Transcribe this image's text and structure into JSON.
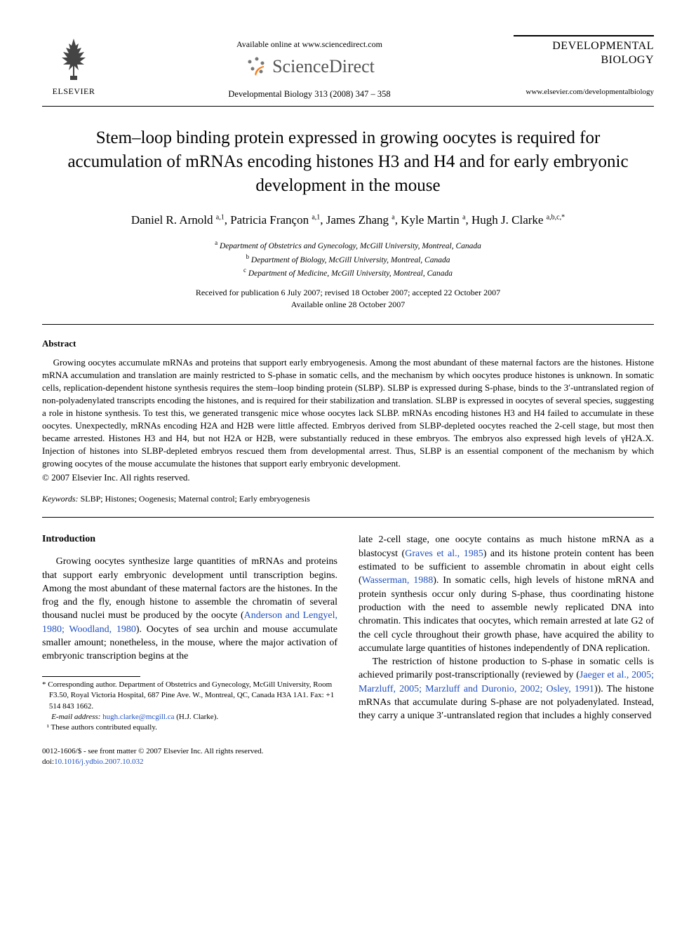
{
  "header": {
    "elsevier_label": "ELSEVIER",
    "available_online": "Available online at www.sciencedirect.com",
    "sciencedirect": "ScienceDirect",
    "citation": "Developmental Biology 313 (2008) 347 – 358",
    "journal_title_line1": "DEVELOPMENTAL",
    "journal_title_line2": "BIOLOGY",
    "journal_url": "www.elsevier.com/developmentalbiology"
  },
  "title": "Stem–loop binding protein expressed in growing oocytes is required for accumulation of mRNAs encoding histones H3 and H4 and for early embryonic development in the mouse",
  "authors_html": "Daniel R. Arnold <sup>a,1</sup>, Patricia Françon <sup>a,1</sup>, James Zhang <sup>a</sup>, Kyle Martin <sup>a</sup>, Hugh J. Clarke <sup>a,b,c,*</sup>",
  "affiliations": [
    {
      "sup": "a",
      "text": "Department of Obstetrics and Gynecology, McGill University, Montreal, Canada"
    },
    {
      "sup": "b",
      "text": "Department of Biology, McGill University, Montreal, Canada"
    },
    {
      "sup": "c",
      "text": "Department of Medicine, McGill University, Montreal, Canada"
    }
  ],
  "dates": {
    "received": "Received for publication 6 July 2007; revised 18 October 2007; accepted 22 October 2007",
    "online": "Available online 28 October 2007"
  },
  "abstract": {
    "label": "Abstract",
    "text": "Growing oocytes accumulate mRNAs and proteins that support early embryogenesis. Among the most abundant of these maternal factors are the histones. Histone mRNA accumulation and translation are mainly restricted to S-phase in somatic cells, and the mechanism by which oocytes produce histones is unknown. In somatic cells, replication-dependent histone synthesis requires the stem–loop binding protein (SLBP). SLBP is expressed during S-phase, binds to the 3′-untranslated region of non-polyadenylated transcripts encoding the histones, and is required for their stabilization and translation. SLBP is expressed in oocytes of several species, suggesting a role in histone synthesis. To test this, we generated transgenic mice whose oocytes lack SLBP. mRNAs encoding histones H3 and H4 failed to accumulate in these oocytes. Unexpectedly, mRNAs encoding H2A and H2B were little affected. Embryos derived from SLBP-depleted oocytes reached the 2-cell stage, but most then became arrested. Histones H3 and H4, but not H2A or H2B, were substantially reduced in these embryos. The embryos also expressed high levels of γH2A.X. Injection of histones into SLBP-depleted embryos rescued them from developmental arrest. Thus, SLBP is an essential component of the mechanism by which growing oocytes of the mouse accumulate the histones that support early embryonic development.",
    "copyright": "© 2007 Elsevier Inc. All rights reserved."
  },
  "keywords": {
    "label": "Keywords:",
    "text": " SLBP; Histones; Oogenesis; Maternal control; Early embryogenesis"
  },
  "intro": {
    "heading": "Introduction",
    "col1_pre": "Growing oocytes synthesize large quantities of mRNAs and proteins that support early embryonic development until transcription begins. Among the most abundant of these maternal factors are the histones. In the frog and the fly, enough histone to assemble the chromatin of several thousand nuclei must be produced by the oocyte (",
    "link1": "Anderson and Lengyel, 1980; Woodland, 1980",
    "col1_post": "). Oocytes of sea urchin and mouse accumulate smaller amount; nonetheless, in the mouse, where the major activation of embryonic transcription begins at the",
    "col2_pre": "late 2-cell stage, one oocyte contains as much histone mRNA as a blastocyst (",
    "link2": "Graves et al., 1985",
    "col2_mid1": ") and its histone protein content has been estimated to be sufficient to assemble chromatin in about eight cells (",
    "link3": "Wasserman, 1988",
    "col2_mid2": "). In somatic cells, high levels of histone mRNA and protein synthesis occur only during S-phase, thus coordinating histone production with the need to assemble newly replicated DNA into chromatin. This indicates that oocytes, which remain arrested at late G2 of the cell cycle throughout their growth phase, have acquired the ability to accumulate large quantities of histones independently of DNA replication.",
    "col2_p2_pre": "The restriction of histone production to S-phase in somatic cells is achieved primarily post-transcriptionally (reviewed by (",
    "link4": "Jaeger et al., 2005; Marzluff, 2005; Marzluff and Duronio, 2002; Osley, 1991",
    "col2_p2_post": ")). The histone mRNAs that accumulate during S-phase are not polyadenylated. Instead, they carry a unique 3′-untranslated region that includes a highly conserved"
  },
  "footnotes": {
    "corr": "* Corresponding author. Department of Obstetrics and Gynecology, McGill University, Room F3.50, Royal Victoria Hospital, 687 Pine Ave. W., Montreal, QC, Canada H3A 1A1. Fax: +1 514 843 1662.",
    "email_label": "E-mail address:",
    "email": "hugh.clarke@mcgill.ca",
    "email_suffix": " (H.J. Clarke).",
    "equal": "¹ These authors contributed equally."
  },
  "bottom": {
    "issn": "0012-1606/$ - see front matter © 2007 Elsevier Inc. All rights reserved.",
    "doi_label": "doi:",
    "doi": "10.1016/j.ydbio.2007.10.032"
  },
  "colors": {
    "text": "#000000",
    "link": "#2050c0",
    "sd_gray": "#666666",
    "sd_orange": "#f58220"
  }
}
